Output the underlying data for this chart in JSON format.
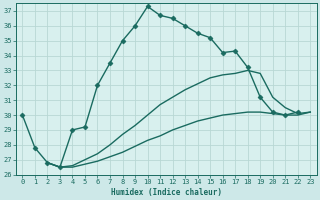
{
  "xlabel": "Humidex (Indice chaleur)",
  "xlim": [
    -0.5,
    23.5
  ],
  "ylim": [
    26,
    37.5
  ],
  "yticks": [
    26,
    27,
    28,
    29,
    30,
    31,
    32,
    33,
    34,
    35,
    36,
    37
  ],
  "xticks": [
    0,
    1,
    2,
    3,
    4,
    5,
    6,
    7,
    8,
    9,
    10,
    11,
    12,
    13,
    14,
    15,
    16,
    17,
    18,
    19,
    20,
    21,
    22,
    23
  ],
  "bg_color": "#cde8e8",
  "plot_bg": "#d8f0ee",
  "line_color": "#1a6b60",
  "grid_color": "#b8d8d4",
  "series": [
    {
      "x": [
        0,
        1,
        2,
        3,
        4,
        5,
        6,
        7,
        8,
        9,
        10,
        11,
        12,
        13,
        14,
        15,
        16,
        17,
        18,
        19,
        20,
        21,
        22
      ],
      "y": [
        30.0,
        27.8,
        26.8,
        26.5,
        29.0,
        29.2,
        32.0,
        33.5,
        35.0,
        36.0,
        37.3,
        36.7,
        36.5,
        36.0,
        35.5,
        35.2,
        34.2,
        34.3,
        33.2,
        31.2,
        30.2,
        30.0,
        30.2
      ],
      "marker": "D",
      "markersize": 2.5,
      "linewidth": 1.0
    },
    {
      "x": [
        2,
        3,
        4,
        5,
        6,
        7,
        8,
        9,
        10,
        11,
        12,
        13,
        14,
        15,
        16,
        17,
        18,
        19,
        20,
        21,
        22,
        23
      ],
      "y": [
        26.8,
        26.5,
        26.6,
        27.0,
        27.4,
        28.0,
        28.7,
        29.3,
        30.0,
        30.7,
        31.2,
        31.7,
        32.1,
        32.5,
        32.7,
        32.8,
        33.0,
        32.8,
        31.2,
        30.5,
        30.1,
        30.2
      ],
      "marker": null,
      "markersize": 0,
      "linewidth": 1.0
    },
    {
      "x": [
        2,
        3,
        4,
        5,
        6,
        7,
        8,
        9,
        10,
        11,
        12,
        13,
        14,
        15,
        16,
        17,
        18,
        19,
        20,
        21,
        22,
        23
      ],
      "y": [
        26.8,
        26.5,
        26.5,
        26.7,
        26.9,
        27.2,
        27.5,
        27.9,
        28.3,
        28.6,
        29.0,
        29.3,
        29.6,
        29.8,
        30.0,
        30.1,
        30.2,
        30.2,
        30.1,
        30.0,
        30.0,
        30.2
      ],
      "marker": null,
      "markersize": 0,
      "linewidth": 1.0
    }
  ]
}
